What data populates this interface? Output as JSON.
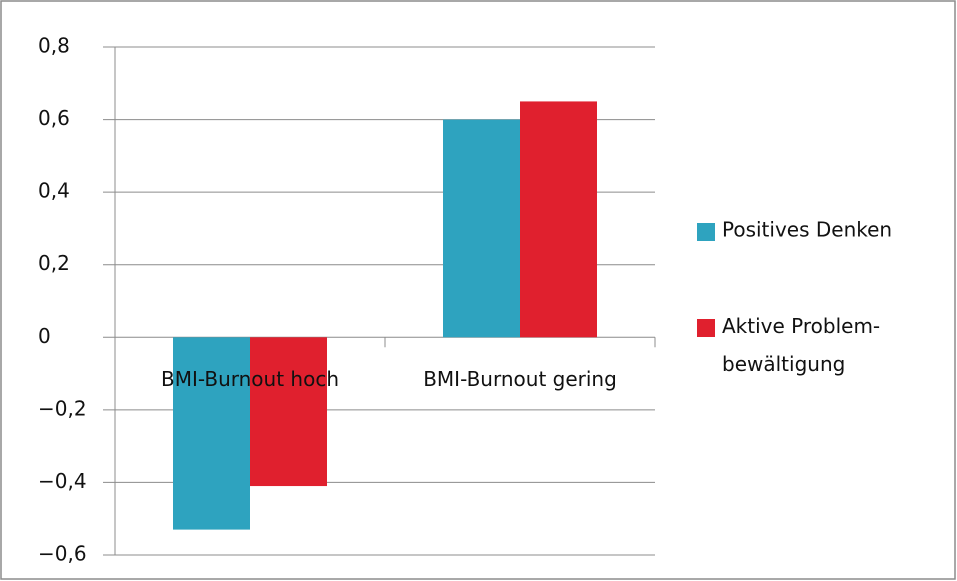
{
  "chart_data": {
    "type": "bar",
    "categories": [
      "BMI-Burnout hoch",
      "BMI-Burnout gering"
    ],
    "series": [
      {
        "name": "Positives Denken",
        "color": "#2ea3bf",
        "values": [
          -0.53,
          0.6
        ]
      },
      {
        "name": "Aktive Problem- bewältigung",
        "color": "#e0202e",
        "values": [
          -0.41,
          0.65
        ]
      }
    ],
    "ylim": [
      -0.6,
      0.8
    ],
    "yticks": [
      {
        "value": -0.6,
        "label": "−0,6"
      },
      {
        "value": -0.4,
        "label": "−0,4"
      },
      {
        "value": -0.2,
        "label": "−0,2"
      },
      0,
      {
        "value": 0.2,
        "label": "0,2"
      },
      {
        "value": 0.4,
        "label": "0,4"
      },
      {
        "value": 0.6,
        "label": "0,6"
      },
      {
        "value": 0.8,
        "label": "0,8"
      }
    ],
    "grid": true,
    "legend": "right"
  }
}
